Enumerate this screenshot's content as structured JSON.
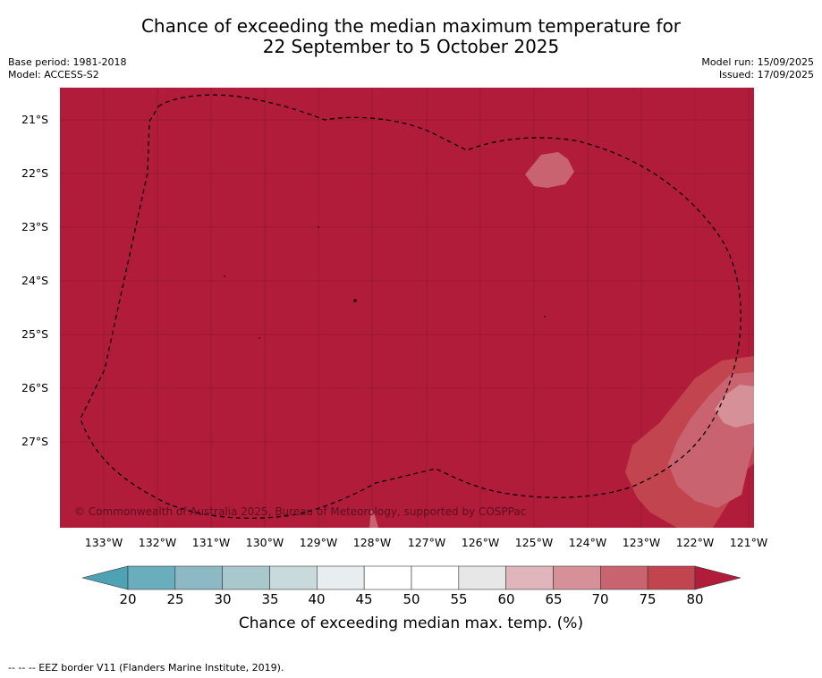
{
  "title": {
    "line1": "Chance of exceeding the median maximum temperature for",
    "line2": "22 September to 5 October 2025"
  },
  "meta": {
    "base_period": "Base period: 1981-2018",
    "model": "Model: ACCESS-S2",
    "model_run": "Model run: 15/09/2025",
    "issued": "Issued: 17/09/2025"
  },
  "map": {
    "lat_ticks": [
      "21°S",
      "22°S",
      "23°S",
      "24°S",
      "25°S",
      "26°S",
      "27°S"
    ],
    "lon_ticks": [
      "133°W",
      "132°W",
      "131°W",
      "130°W",
      "129°W",
      "128°W",
      "127°W",
      "126°W",
      "125°W",
      "124°W",
      "123°W",
      "122°W",
      "121°W"
    ],
    "copyright": "© Commonwealth of Australia 2025, Bureau of Meteorology, supported by COSPPac",
    "base_color": "#b11c3a"
  },
  "colorbar": {
    "ticks": [
      "20",
      "25",
      "30",
      "35",
      "40",
      "45",
      "50",
      "55",
      "60",
      "65",
      "70",
      "75",
      "80"
    ],
    "colors": [
      "#6aadbd",
      "#8cb9c4",
      "#a9c8cd",
      "#c9dadd",
      "#e8eef0",
      "#ffffff",
      "#ffffff",
      "#e7e7e7",
      "#e1b5bc",
      "#d69198",
      "#c9636f",
      "#c1444f"
    ],
    "under_color": "#4fa2b3",
    "over_color": "#b11c3a",
    "label": "Chance of exceeding median max. temp. (%)"
  },
  "footnote": "--  --  -- EEZ border V11 (Flanders Marine Institute, 2019)."
}
